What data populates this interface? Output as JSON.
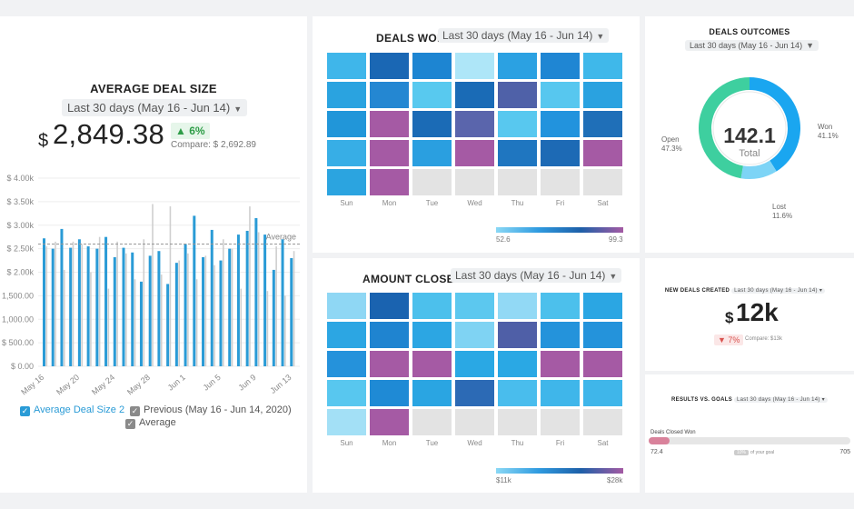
{
  "average_deal_size": {
    "title": "AVERAGE DEAL SIZE",
    "date_range": "Last 30 days (May 16 - Jun 14)",
    "currency": "$",
    "value": "2,849.38",
    "change": "6%",
    "compare": "Compare: $ 2,692.89",
    "legend": {
      "current": "Average Deal Size 2",
      "previous": "Previous (May 16 - Jun 14, 2020)",
      "average": "Average"
    },
    "average_label": "Average"
  },
  "chart_data": {
    "type": "bar",
    "y_ticks": [
      "$ 4.00k",
      "$ 3.50k",
      "$ 3.00k",
      "$ 2.50k",
      "$ 2.00k",
      "$ 1,500.00",
      "$ 1,000.00",
      "$ 500.00",
      "$ 0.00"
    ],
    "x_tick_labels": [
      "May 16",
      "May 20",
      "May 24",
      "May 28",
      "Jun 1",
      "Jun 5",
      "Jun 9",
      "Jun 13"
    ],
    "ylim": [
      0,
      4000
    ],
    "average": 2600,
    "series": [
      {
        "name": "Average Deal Size 2",
        "color": "#2a9bd6",
        "values": [
          2720,
          2500,
          2920,
          2520,
          2700,
          2550,
          2500,
          2750,
          2320,
          2520,
          2420,
          1800,
          2350,
          2450,
          1750,
          2200,
          2600,
          3200,
          2320,
          2900,
          2250,
          2500,
          2800,
          2880,
          3150,
          2800,
          2050,
          2700,
          2300
        ]
      },
      {
        "name": "Previous (May 16 - Jun 14, 2020)",
        "color": "#cfcfcf",
        "values": [
          2550,
          2650,
          2050,
          2650,
          2600,
          2000,
          2750,
          1650,
          2650,
          2400,
          1850,
          2700,
          3450,
          1950,
          3400,
          2250,
          2400,
          1850,
          2350,
          2150,
          2700,
          2500,
          1650,
          3400,
          2850,
          1600,
          2550,
          1500,
          2450
        ]
      }
    ]
  },
  "deals_won": {
    "title": "DEALS WON",
    "date_range": "Last 30 days (May 16 - Jun 14)",
    "days": [
      "Sun",
      "Mon",
      "Tue",
      "Wed",
      "Thu",
      "Fri",
      "Sat"
    ],
    "scale_min": "52.6",
    "scale_max": "99.3",
    "cells": [
      [
        "#3fb6ea",
        "#1a67b4",
        "#1d85d2",
        "#aee6f8",
        "#2ba1e2",
        "#1f86d3",
        "#3fb8ea"
      ],
      [
        "#2aa3e0",
        "#2487d2",
        "#58c9ef",
        "#1a6bb6",
        "#4f61a8",
        "#57c7ef",
        "#2aa2e0"
      ],
      [
        "#2196d9",
        "#a55aa4",
        "#1b6bb6",
        "#5a65ac",
        "#58c8ef",
        "#2293dd",
        "#1f6fb8"
      ],
      [
        "#37aee6",
        "#a55aa4",
        "#2a9fe0",
        "#a55aa4",
        "#1f76c0",
        "#1d6ab5",
        "#a55aa4"
      ],
      [
        "#2ba4e0",
        "#a55aa4",
        "#e3e3e3",
        "#e3e3e3",
        "#e3e3e3",
        "#e3e3e3",
        "#e3e3e3"
      ]
    ]
  },
  "amount_closed": {
    "title": "AMOUNT CLOSED",
    "date_range": "Last 30 days (May 16 - Jun 14)",
    "days": [
      "Sun",
      "Mon",
      "Tue",
      "Wed",
      "Thu",
      "Fri",
      "Sat"
    ],
    "scale_min": "$11k",
    "scale_max": "$28k",
    "cells": [
      [
        "#8fd7f4",
        "#1a63b0",
        "#4cc0ec",
        "#5cc8ef",
        "#92d9f5",
        "#4cc0ec",
        "#2ba6e3"
      ],
      [
        "#2ca6e3",
        "#1f84d0",
        "#2ca6e3",
        "#7fd3f3",
        "#4f5fa7",
        "#2493db",
        "#2493db"
      ],
      [
        "#2592db",
        "#a55aa4",
        "#a55aa4",
        "#2aa8e4",
        "#2aa8e4",
        "#a55aa4",
        "#a55aa4"
      ],
      [
        "#58c7ef",
        "#1f8ad5",
        "#2aa5e2",
        "#2c6ab5",
        "#49bded",
        "#3fb6ea",
        "#3fb6ea"
      ],
      [
        "#a3e0f6",
        "#a55aa4",
        "#e3e3e3",
        "#e3e3e3",
        "#e3e3e3",
        "#e3e3e3",
        "#e3e3e3"
      ]
    ]
  },
  "deals_outcomes": {
    "title": "DEALS OUTCOMES",
    "date_range": "Last 30 days (May 16 - Jun 14)",
    "total": "142.1",
    "total_label": "Total",
    "segments": [
      {
        "name": "Won",
        "percent": "41.1%",
        "value": 0.411,
        "color": "#1aa6f0"
      },
      {
        "name": "Lost",
        "percent": "11.6%",
        "value": 0.116,
        "color": "#7dd4f6"
      },
      {
        "name": "Open",
        "percent": "47.3%",
        "value": 0.473,
        "color": "#3ecf9f"
      }
    ]
  },
  "new_deals": {
    "title": "NEW DEALS CREATED",
    "date_range": "Last 30 days (May 16 - Jun 14)",
    "currency": "$",
    "value": "12k",
    "change": "7%",
    "compare": "Compare: $13k"
  },
  "results_goals": {
    "title": "RESULTS VS. GOALS",
    "date_range": "Last 30 days (May 16 - Jun 14)",
    "metric": "Deals Closed Won",
    "current": "72.4",
    "goal": "705",
    "progress": 0.103,
    "percent_text": "10%",
    "percent_suffix": "of your goal"
  }
}
